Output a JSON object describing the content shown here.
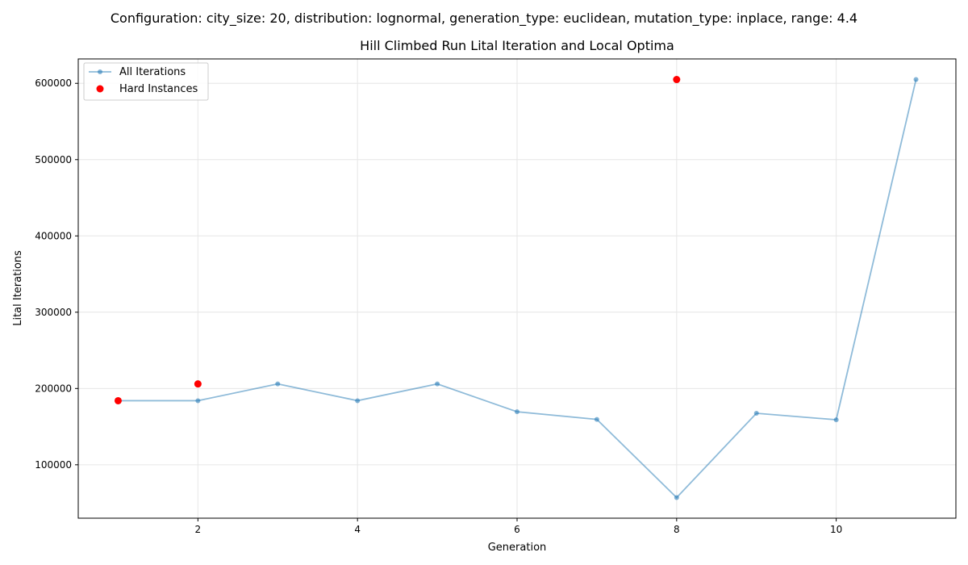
{
  "suptitle": "Configuration: city_size: 20, distribution: lognormal, generation_type: euclidean, mutation_type: inplace, range: 4.4",
  "chart_data": {
    "type": "line",
    "title": "Hill Climbed Run Lital Iteration and Local Optima",
    "xlabel": "Generation",
    "ylabel": "Lital Iterations",
    "xlim": [
      0.5,
      11.5
    ],
    "ylim": [
      30000,
      632000
    ],
    "xticks": [
      2,
      4,
      6,
      8,
      10
    ],
    "yticks": [
      100000,
      200000,
      300000,
      400000,
      500000,
      600000
    ],
    "grid": true,
    "legend_position": "top-left",
    "series": [
      {
        "name": "All Iterations",
        "kind": "line",
        "color": "#1f77b4",
        "x": [
          1,
          2,
          3,
          4,
          5,
          6,
          7,
          8,
          9,
          10,
          11
        ],
        "y": [
          184000,
          184000,
          206000,
          184000,
          206000,
          169500,
          159500,
          57000,
          167500,
          159000,
          605000
        ]
      },
      {
        "name": "Hard Instances",
        "kind": "scatter",
        "color": "#ff0000",
        "x": [
          1,
          2,
          8
        ],
        "y": [
          184000,
          206000,
          605000
        ]
      }
    ]
  }
}
